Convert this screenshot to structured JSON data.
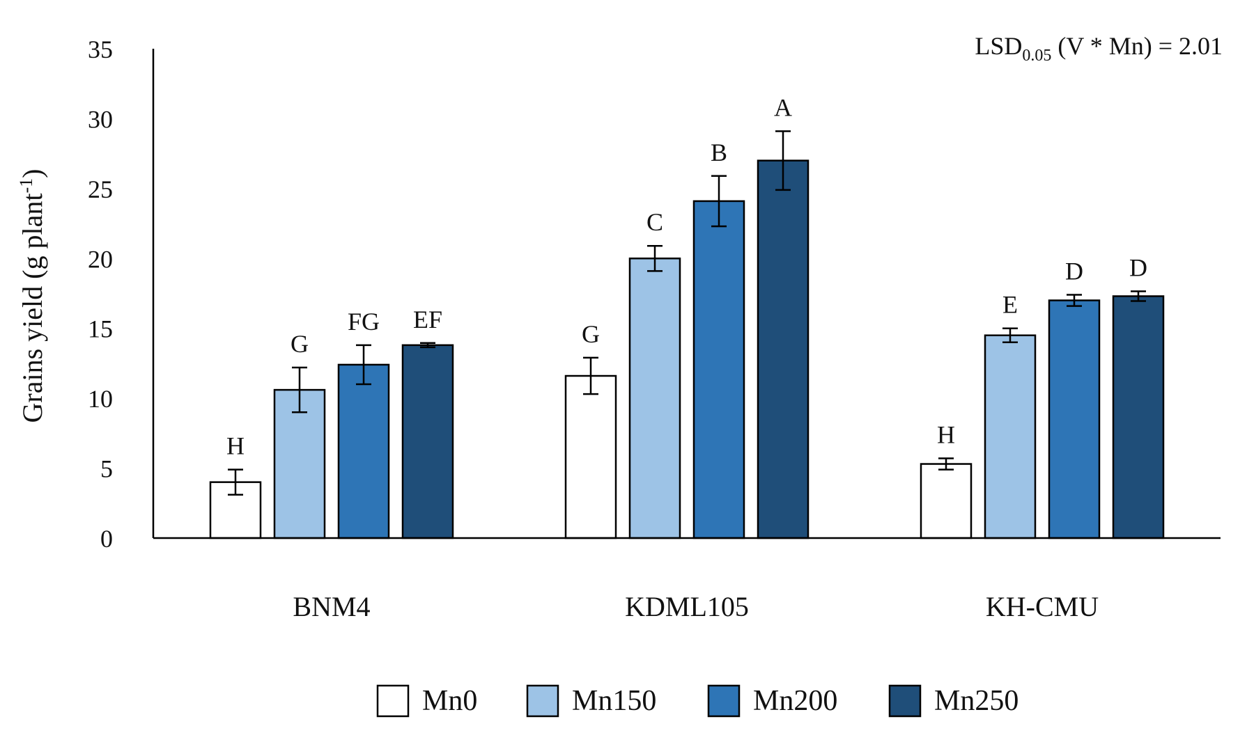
{
  "chart_data": {
    "type": "bar",
    "ylabel": "Grains yield (g plant",
    "ylabel_sup": "-1",
    "ylabel_close": ")",
    "annotation": {
      "main": "LSD",
      "sub": "0.05",
      "rest": " (V * Mn) = 2.01"
    },
    "ylim": [
      0,
      35
    ],
    "yticks": [
      "0",
      "5",
      "10",
      "15",
      "20",
      "25",
      "30",
      "35"
    ],
    "categories": [
      "BNM4",
      "KDML105",
      "KH-CMU"
    ],
    "series": [
      {
        "name": "Mn0",
        "color": "#ffffff",
        "values": [
          4.0,
          11.6,
          5.3
        ],
        "errors": [
          0.9,
          1.3,
          0.4
        ],
        "letters": [
          "H",
          "G",
          "H"
        ]
      },
      {
        "name": "Mn150",
        "color": "#9dc3e6",
        "values": [
          10.6,
          20.0,
          14.5
        ],
        "errors": [
          1.6,
          0.9,
          0.5
        ],
        "letters": [
          "G",
          "C",
          "E"
        ]
      },
      {
        "name": "Mn200",
        "color": "#2e75b6",
        "values": [
          12.4,
          24.1,
          17.0
        ],
        "errors": [
          1.4,
          1.8,
          0.4
        ],
        "letters": [
          "FG",
          "B",
          "D"
        ]
      },
      {
        "name": "Mn250",
        "color": "#1f4e79",
        "values": [
          13.8,
          27.0,
          17.3
        ],
        "errors": [
          0.15,
          2.1,
          0.35
        ],
        "letters": [
          "EF",
          "A",
          "D"
        ]
      }
    ],
    "grid": false,
    "legend_position": "bottom-center"
  }
}
